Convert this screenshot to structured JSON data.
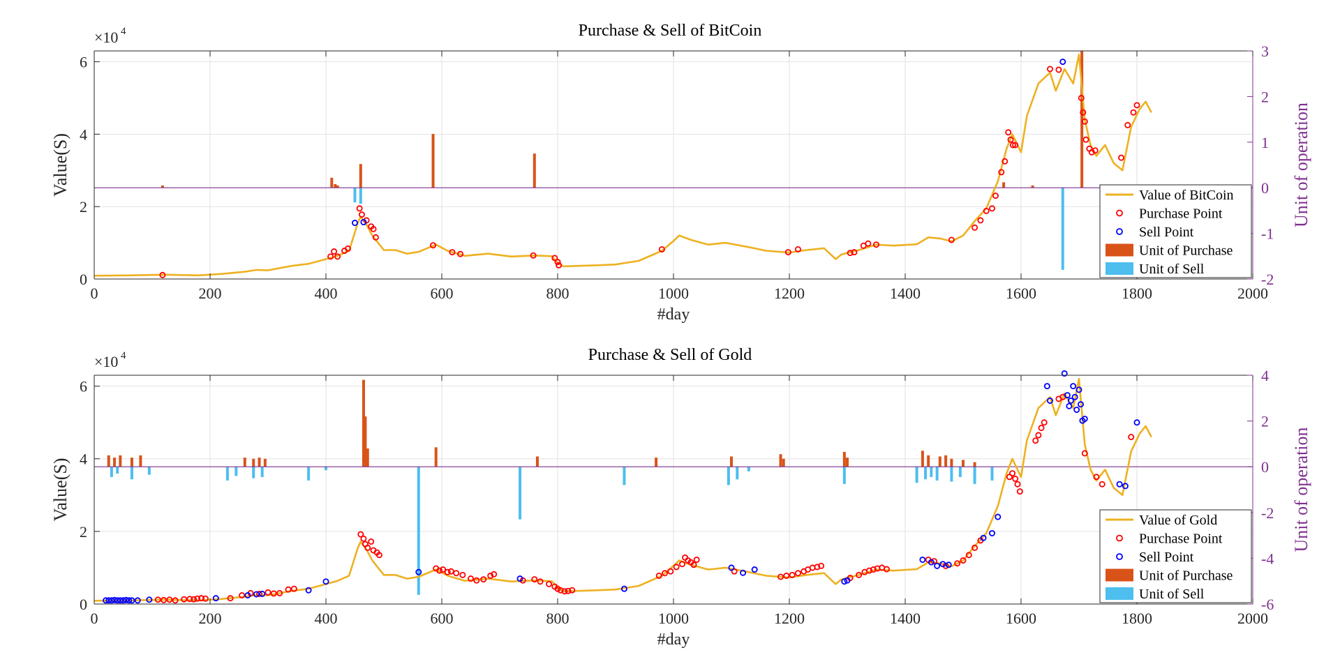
{
  "chart_data": [
    {
      "type": "line",
      "title": "Purchase & Sell of BitCoin",
      "xlabel": "#day",
      "ylabel": "Value(S)",
      "y2label": "Unit of operation",
      "y_exponent": "×10",
      "y_exponent_power": "4",
      "xlim": [
        0,
        2000
      ],
      "ylim": [
        0,
        6.3
      ],
      "y2lim": [
        -2,
        3
      ],
      "xticks": [
        "0",
        "200",
        "400",
        "600",
        "800",
        "1000",
        "1200",
        "1400",
        "1600",
        "1800",
        "2000"
      ],
      "yticks": [
        "0",
        "2",
        "4",
        "6"
      ],
      "y2ticks": [
        "-2",
        "-1",
        "0",
        "1",
        "2",
        "3"
      ],
      "grid": true,
      "legend_position": "bottom-right",
      "legend": [
        "Value of BitCoin",
        "Purchase Point",
        "Sell Point",
        "Unit of Purchase",
        "Unit of Sell"
      ],
      "series": [
        {
          "name": "Value of BitCoin",
          "x": [
            0,
            60,
            120,
            180,
            220,
            260,
            280,
            300,
            340,
            370,
            400,
            420,
            440,
            455,
            460,
            470,
            480,
            500,
            520,
            540,
            560,
            590,
            610,
            640,
            680,
            720,
            760,
            790,
            800,
            810,
            830,
            870,
            900,
            940,
            980,
            1000,
            1010,
            1030,
            1060,
            1090,
            1130,
            1160,
            1200,
            1230,
            1260,
            1280,
            1290,
            1320,
            1350,
            1380,
            1420,
            1440,
            1460,
            1480,
            1500,
            1520,
            1540,
            1560,
            1575,
            1585,
            1600,
            1610,
            1630,
            1650,
            1660,
            1675,
            1690,
            1700,
            1710,
            1720,
            1730,
            1745,
            1760,
            1775,
            1790,
            1805,
            1815,
            1825
          ],
          "y": [
            0.09,
            0.1,
            0.12,
            0.1,
            0.14,
            0.2,
            0.25,
            0.24,
            0.36,
            0.42,
            0.55,
            0.64,
            0.78,
            1.55,
            1.72,
            1.5,
            1.2,
            0.8,
            0.8,
            0.7,
            0.75,
            0.95,
            0.78,
            0.64,
            0.7,
            0.62,
            0.65,
            0.63,
            0.45,
            0.35,
            0.36,
            0.38,
            0.4,
            0.5,
            0.78,
            1.05,
            1.2,
            1.08,
            0.95,
            1.0,
            0.88,
            0.78,
            0.73,
            0.8,
            0.85,
            0.55,
            0.68,
            0.8,
            0.95,
            0.92,
            0.96,
            1.15,
            1.12,
            1.04,
            1.2,
            1.6,
            1.95,
            2.7,
            3.6,
            4.0,
            3.5,
            4.5,
            5.4,
            5.7,
            5.2,
            5.8,
            5.4,
            6.2,
            4.4,
            3.7,
            3.4,
            3.7,
            3.2,
            3.0,
            4.2,
            4.7,
            4.9,
            4.6
          ]
        },
        {
          "name": "Purchase Point",
          "x": [
            118,
            408,
            414,
            420,
            432,
            438,
            458,
            462,
            470,
            478,
            482,
            486,
            585,
            618,
            632,
            758,
            795,
            800,
            802,
            980,
            1198,
            1215,
            1305,
            1312,
            1328,
            1336,
            1350,
            1480,
            1520,
            1530,
            1540,
            1550,
            1556,
            1566,
            1572,
            1578,
            1582,
            1586,
            1590,
            1650,
            1665,
            1704,
            1707,
            1710,
            1712,
            1718,
            1722,
            1728,
            1773,
            1784,
            1794,
            1800
          ],
          "y": [
            0.11,
            0.62,
            0.76,
            0.62,
            0.78,
            0.84,
            1.95,
            1.78,
            1.62,
            1.45,
            1.38,
            1.15,
            0.93,
            0.74,
            0.69,
            0.65,
            0.58,
            0.47,
            0.38,
            0.82,
            0.74,
            0.82,
            0.72,
            0.74,
            0.92,
            0.98,
            0.95,
            1.08,
            1.42,
            1.62,
            1.88,
            1.95,
            2.3,
            2.95,
            3.25,
            4.05,
            3.85,
            3.7,
            3.7,
            5.8,
            5.78,
            5.0,
            4.6,
            4.35,
            3.85,
            3.6,
            3.5,
            3.55,
            3.35,
            4.25,
            4.6,
            4.8
          ]
        },
        {
          "name": "Sell Point",
          "x": [
            450,
            465,
            1672
          ],
          "y": [
            1.55,
            1.57,
            6.0
          ]
        },
        {
          "name": "Unit of Purchase",
          "x": [
            118,
            410,
            416,
            420,
            460,
            585,
            760,
            1570,
            1620,
            1705
          ],
          "y": [
            0.05,
            0.22,
            0.08,
            0.05,
            0.52,
            1.18,
            0.75,
            0.12,
            0.05,
            3.0
          ]
        },
        {
          "name": "Unit of Sell",
          "x": [
            450,
            460,
            1672
          ],
          "y": [
            -0.32,
            -0.35,
            -1.8
          ]
        }
      ]
    },
    {
      "type": "line",
      "title": "Purchase & Sell of Gold",
      "xlabel": "#day",
      "ylabel": "Value(S)",
      "y2label": "Unit of operation",
      "y_exponent": "×10",
      "y_exponent_power": "4",
      "xlim": [
        0,
        2000
      ],
      "ylim": [
        0,
        6.3
      ],
      "y2lim": [
        -6,
        4
      ],
      "xticks": [
        "0",
        "200",
        "400",
        "600",
        "800",
        "1000",
        "1200",
        "1400",
        "1600",
        "1800",
        "2000"
      ],
      "yticks": [
        "0",
        "2",
        "4",
        "6"
      ],
      "y2ticks": [
        "-6",
        "-4",
        "-2",
        "0",
        "2",
        "4"
      ],
      "grid": true,
      "legend_position": "bottom-right",
      "legend": [
        "Value of Gold",
        "Purchase Point",
        "Sell Point",
        "Unit of Purchase",
        "Unit of Sell"
      ],
      "series": [
        {
          "name": "Value of Gold",
          "x": [
            0,
            60,
            120,
            180,
            220,
            260,
            280,
            300,
            340,
            370,
            400,
            420,
            440,
            455,
            460,
            470,
            480,
            500,
            520,
            540,
            560,
            590,
            610,
            640,
            680,
            720,
            760,
            790,
            800,
            810,
            830,
            870,
            900,
            940,
            980,
            1000,
            1010,
            1030,
            1060,
            1090,
            1130,
            1160,
            1200,
            1230,
            1260,
            1280,
            1290,
            1320,
            1350,
            1380,
            1420,
            1440,
            1460,
            1480,
            1500,
            1520,
            1540,
            1560,
            1575,
            1585,
            1600,
            1610,
            1630,
            1650,
            1660,
            1675,
            1690,
            1700,
            1710,
            1720,
            1730,
            1745,
            1760,
            1775,
            1790,
            1805,
            1815,
            1825
          ],
          "y": [
            0.09,
            0.1,
            0.12,
            0.1,
            0.14,
            0.2,
            0.25,
            0.24,
            0.36,
            0.42,
            0.55,
            0.64,
            0.78,
            1.55,
            1.72,
            1.5,
            1.2,
            0.8,
            0.8,
            0.7,
            0.75,
            0.95,
            0.78,
            0.64,
            0.7,
            0.62,
            0.65,
            0.63,
            0.45,
            0.35,
            0.36,
            0.38,
            0.4,
            0.5,
            0.78,
            1.05,
            1.2,
            1.08,
            0.95,
            1.0,
            0.88,
            0.78,
            0.73,
            0.8,
            0.85,
            0.55,
            0.68,
            0.8,
            0.95,
            0.92,
            0.96,
            1.15,
            1.12,
            1.04,
            1.2,
            1.6,
            1.95,
            2.7,
            3.6,
            4.0,
            3.5,
            4.5,
            5.4,
            5.7,
            5.2,
            5.8,
            5.4,
            6.2,
            4.4,
            3.7,
            3.4,
            3.7,
            3.2,
            3.0,
            4.2,
            4.7,
            4.9,
            4.6
          ]
        },
        {
          "name": "Purchase Point",
          "x": [
            110,
            120,
            130,
            140,
            155,
            165,
            172,
            178,
            185,
            192,
            235,
            255,
            270,
            285,
            300,
            310,
            320,
            335,
            345,
            460,
            465,
            468,
            472,
            478,
            482,
            488,
            492,
            590,
            596,
            602,
            610,
            616,
            625,
            636,
            650,
            660,
            672,
            684,
            690,
            740,
            760,
            770,
            785,
            795,
            800,
            805,
            812,
            818,
            825,
            975,
            985,
            995,
            1005,
            1015,
            1020,
            1025,
            1030,
            1035,
            1040,
            1105,
            1185,
            1195,
            1205,
            1215,
            1225,
            1232,
            1240,
            1248,
            1255,
            1305,
            1320,
            1330,
            1338,
            1345,
            1352,
            1360,
            1368,
            1440,
            1450,
            1470,
            1490,
            1500,
            1510,
            1520,
            1530,
            1580,
            1585,
            1590,
            1594,
            1598,
            1625,
            1630,
            1635,
            1640,
            1665,
            1672,
            1710,
            1730,
            1740,
            1790
          ],
          "y": [
            0.12,
            0.11,
            0.12,
            0.1,
            0.13,
            0.14,
            0.13,
            0.15,
            0.16,
            0.15,
            0.16,
            0.24,
            0.3,
            0.28,
            0.32,
            0.29,
            0.3,
            0.4,
            0.42,
            1.92,
            1.8,
            1.65,
            1.55,
            1.72,
            1.48,
            1.42,
            1.35,
            0.98,
            0.92,
            0.95,
            0.88,
            0.9,
            0.85,
            0.8,
            0.7,
            0.65,
            0.68,
            0.78,
            0.82,
            0.65,
            0.68,
            0.62,
            0.55,
            0.48,
            0.42,
            0.38,
            0.35,
            0.36,
            0.38,
            0.78,
            0.85,
            0.9,
            1.02,
            1.1,
            1.28,
            1.2,
            1.15,
            1.08,
            1.22,
            0.9,
            0.75,
            0.78,
            0.8,
            0.85,
            0.9,
            0.95,
            1.0,
            1.02,
            1.05,
            0.72,
            0.8,
            0.88,
            0.92,
            0.95,
            0.98,
            1.0,
            0.96,
            1.22,
            1.18,
            1.05,
            1.12,
            1.2,
            1.35,
            1.55,
            1.75,
            3.5,
            3.6,
            3.45,
            3.3,
            3.1,
            4.5,
            4.65,
            4.85,
            5.0,
            5.65,
            5.7,
            4.15,
            3.5,
            3.3,
            4.6
          ]
        },
        {
          "name": "Sell Point",
          "x": [
            20,
            25,
            30,
            35,
            40,
            45,
            50,
            55,
            60,
            65,
            75,
            95,
            210,
            265,
            280,
            290,
            370,
            400,
            560,
            735,
            915,
            1100,
            1120,
            1140,
            1295,
            1300,
            1430,
            1445,
            1455,
            1465,
            1475,
            1535,
            1550,
            1560,
            1645,
            1650,
            1675,
            1680,
            1683,
            1686,
            1690,
            1693,
            1696,
            1700,
            1703,
            1706,
            1710,
            1770,
            1780,
            1800
          ],
          "y": [
            0.1,
            0.1,
            0.1,
            0.11,
            0.1,
            0.1,
            0.1,
            0.11,
            0.1,
            0.1,
            0.1,
            0.12,
            0.16,
            0.24,
            0.27,
            0.28,
            0.38,
            0.62,
            0.88,
            0.7,
            0.42,
            1.0,
            0.86,
            0.95,
            0.62,
            0.65,
            1.22,
            1.15,
            1.05,
            1.1,
            1.08,
            1.82,
            1.95,
            2.4,
            6.0,
            5.6,
            6.35,
            5.75,
            5.45,
            5.6,
            6.0,
            5.7,
            5.35,
            5.9,
            5.5,
            5.05,
            5.1,
            3.3,
            3.25,
            5.0
          ]
        },
        {
          "name": "Unit of Purchase",
          "x": [
            25,
            35,
            45,
            65,
            80,
            260,
            275,
            285,
            295,
            465,
            468,
            472,
            590,
            765,
            970,
            1100,
            1185,
            1190,
            1295,
            1300,
            1430,
            1440,
            1460,
            1470,
            1480,
            1500,
            1520
          ],
          "y": [
            0.5,
            0.4,
            0.5,
            0.4,
            0.5,
            0.4,
            0.35,
            0.4,
            0.35,
            3.8,
            2.2,
            0.8,
            0.85,
            0.45,
            0.4,
            0.45,
            0.55,
            0.35,
            0.65,
            0.4,
            0.7,
            0.5,
            0.45,
            0.5,
            0.35,
            0.3,
            0.2
          ]
        },
        {
          "name": "Unit of Sell",
          "x": [
            30,
            40,
            65,
            95,
            230,
            245,
            275,
            290,
            370,
            400,
            560,
            735,
            915,
            1095,
            1110,
            1130,
            1295,
            1420,
            1435,
            1445,
            1455,
            1480,
            1495,
            1520,
            1550
          ],
          "y": [
            -0.45,
            -0.3,
            -0.55,
            -0.35,
            -0.6,
            -0.4,
            -0.5,
            -0.45,
            -0.6,
            -0.15,
            -5.6,
            -2.3,
            -0.8,
            -0.8,
            -0.55,
            -0.2,
            -0.75,
            -0.7,
            -0.55,
            -0.45,
            -0.6,
            -0.65,
            -0.45,
            -0.75,
            -0.6
          ]
        }
      ]
    }
  ],
  "colors": {
    "value_line": "#EDB120",
    "purchase_point": "#FF0000",
    "sell_point": "#0000FF",
    "unit_purchase": "#D95319",
    "unit_sell": "#4DBEEE",
    "right_axis": "#7E2F8E",
    "grid": "#e2e2e2"
  }
}
